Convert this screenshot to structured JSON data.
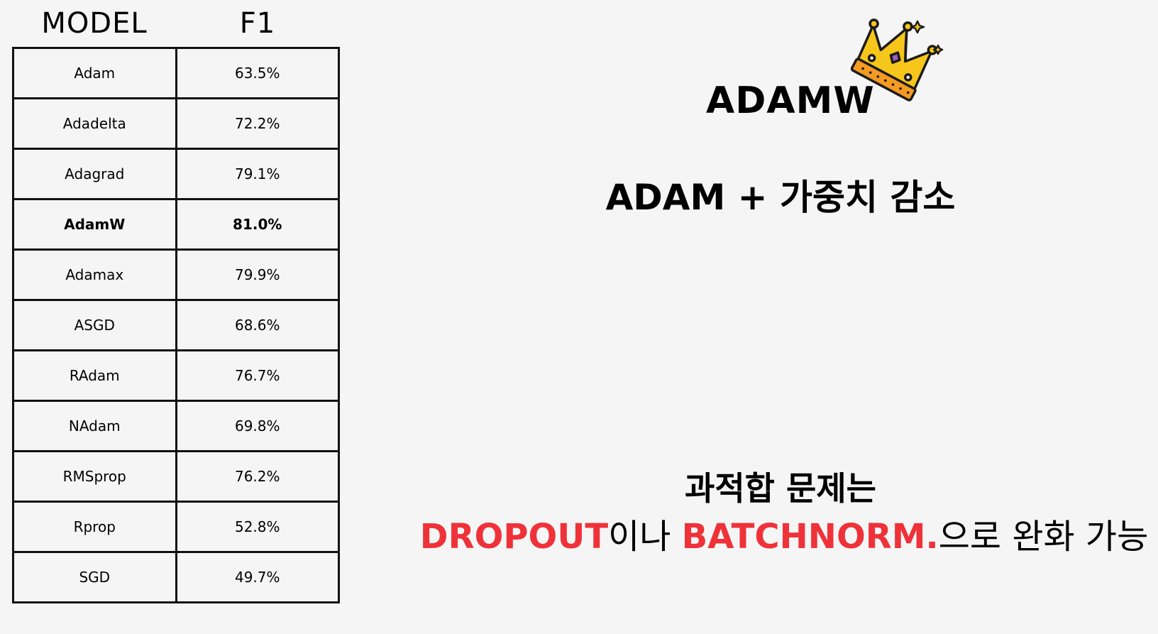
{
  "table": {
    "headers": [
      "MODEL",
      "F1"
    ],
    "rows": [
      {
        "model": "Adam",
        "f1": "63.5%"
      },
      {
        "model": "Adadelta",
        "f1": "72.2%"
      },
      {
        "model": "Adagrad",
        "f1": "79.1%"
      },
      {
        "model": "AdamW",
        "f1": "81.0%"
      },
      {
        "model": "Adamax",
        "f1": "79.9%"
      },
      {
        "model": "ASGD",
        "f1": "68.6%"
      },
      {
        "model": "RAdam",
        "f1": "76.7%"
      },
      {
        "model": "NAdam",
        "f1": "69.8%"
      },
      {
        "model": "RMSprop",
        "f1": "76.2%"
      },
      {
        "model": "Rprop",
        "f1": "52.8%"
      },
      {
        "model": "SGD",
        "f1": "49.7%"
      }
    ],
    "highlighted_row": 3
  },
  "right": {
    "title": "ADAMW",
    "title_icon": "crown-icon",
    "subtitle": "ADAM + 가중치 감소",
    "note_line1": "과적합 문제는",
    "note_line2": {
      "part1": "DROPOUT",
      "part2": "이나 ",
      "part3": "BATCHNORM.",
      "part4": "으로 완화 가능"
    }
  },
  "colors": {
    "background": "#f5f5f5",
    "accent": "#ef3239",
    "crown_gold": "#f7c61a",
    "crown_band": "#f59a23"
  }
}
